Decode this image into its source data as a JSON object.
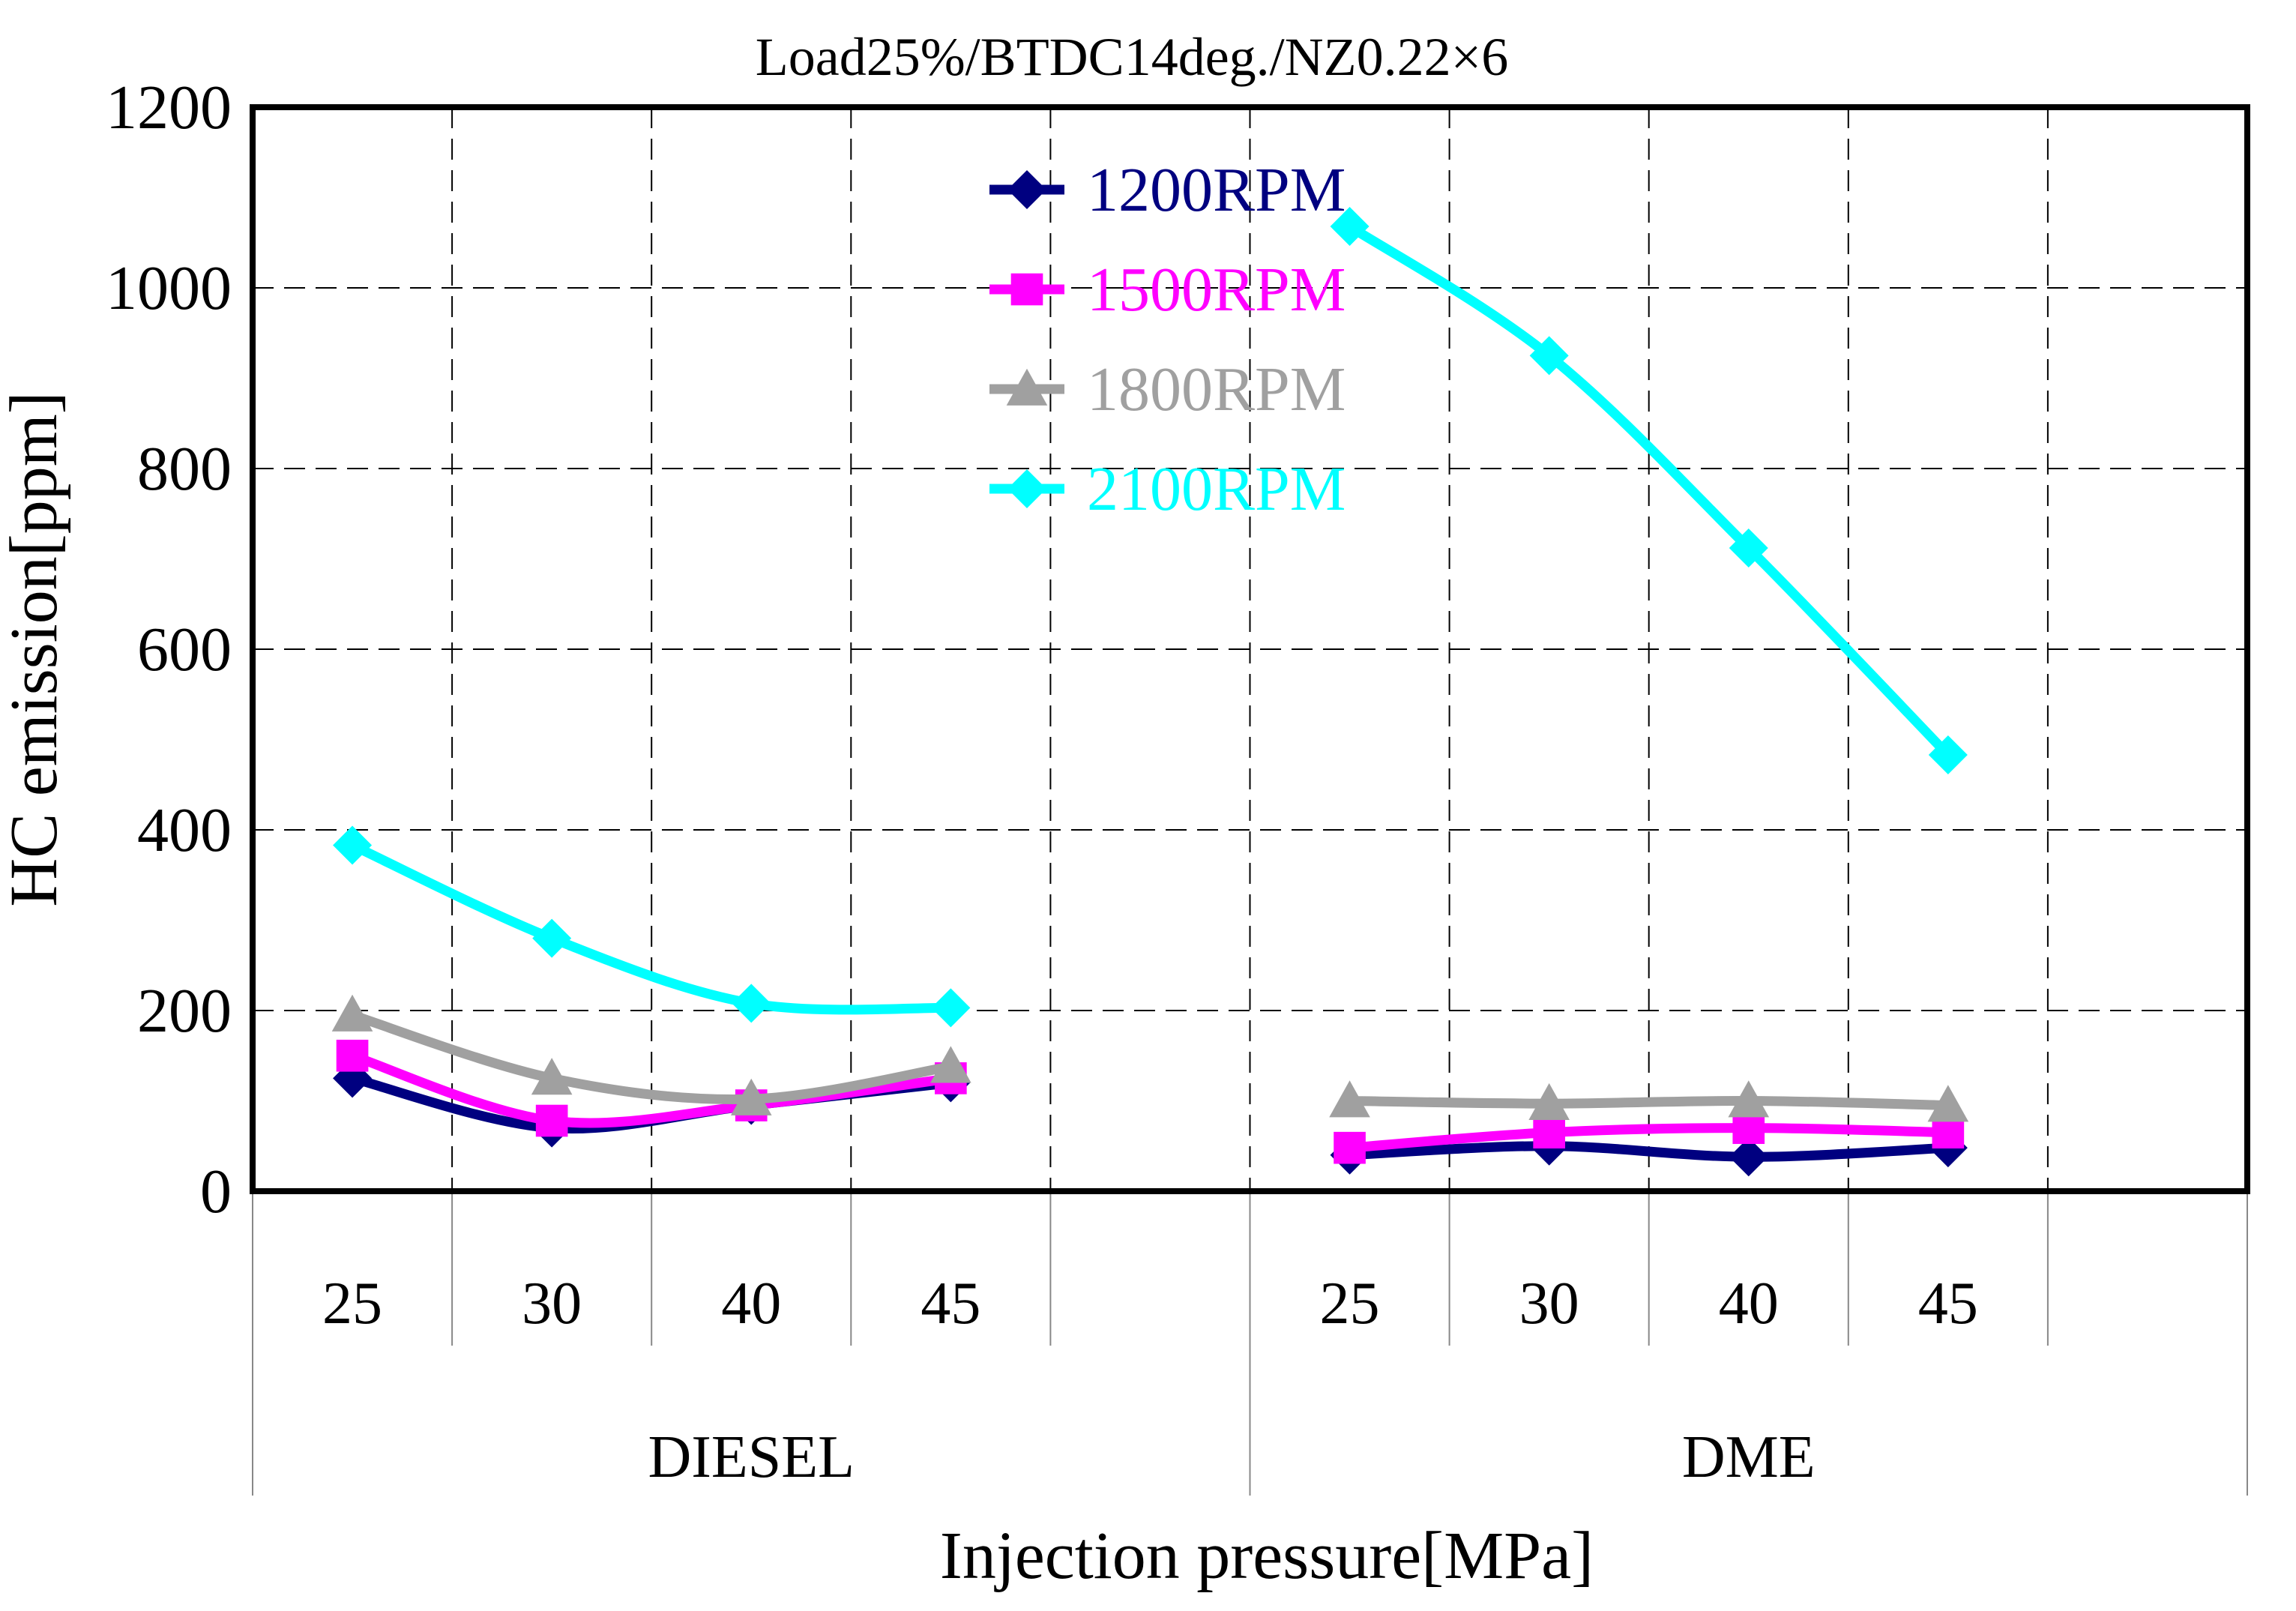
{
  "chart_data": {
    "type": "line",
    "title": "Load25%/BTDC14deg./NZ0.22×6",
    "xlabel": "Injection pressure[MPa]",
    "ylabel": "HC emission[ppm]",
    "ylim": [
      0,
      1200
    ],
    "yticks": [
      0,
      200,
      400,
      600,
      800,
      1000,
      1200
    ],
    "grid": "dashed",
    "legend_position": "top-center",
    "groups": [
      {
        "name": "DIESEL",
        "categories": [
          "25",
          "30",
          "40",
          "45"
        ]
      },
      {
        "name": "DME",
        "categories": [
          "25",
          "30",
          "40",
          "45"
        ]
      }
    ],
    "series": [
      {
        "name": "1200RPM",
        "color": "#000080",
        "marker": "diamond",
        "segments": [
          [
            125,
            70,
            95,
            120
          ],
          [
            40,
            50,
            38,
            48
          ]
        ]
      },
      {
        "name": "1500RPM",
        "color": "#ff00ff",
        "marker": "square",
        "segments": [
          [
            150,
            78,
            95,
            125
          ],
          [
            48,
            65,
            70,
            65
          ]
        ]
      },
      {
        "name": "1800RPM",
        "color": "#a0a0a0",
        "marker": "triangle",
        "segments": [
          [
            195,
            125,
            102,
            138
          ],
          [
            100,
            97,
            100,
            95
          ]
        ]
      },
      {
        "name": "2100RPM",
        "color": "#00ffff",
        "marker": "diamond",
        "segments": [
          [
            383,
            280,
            208,
            203
          ],
          [
            1068,
            925,
            712,
            483
          ]
        ]
      }
    ]
  }
}
